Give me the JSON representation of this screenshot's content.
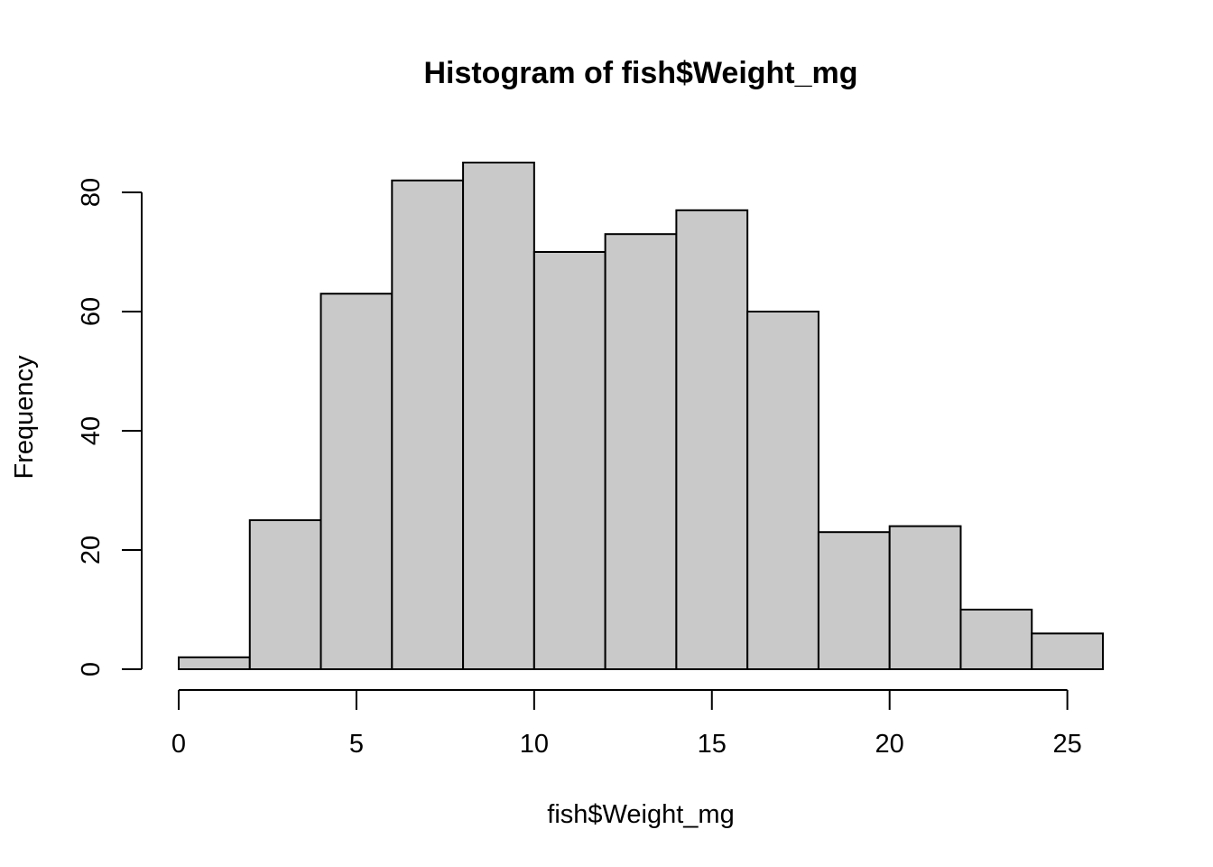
{
  "chart_data": {
    "type": "bar",
    "title": "Histogram of fish$Weight_mg",
    "xlabel": "fish$Weight_mg",
    "ylabel": "Frequency",
    "bin_edges": [
      0,
      2,
      4,
      6,
      8,
      10,
      12,
      14,
      16,
      18,
      20,
      22,
      24,
      26
    ],
    "values": [
      2,
      25,
      63,
      82,
      85,
      70,
      73,
      77,
      60,
      23,
      24,
      10,
      6
    ],
    "x_ticks": [
      0,
      5,
      10,
      15,
      20,
      25
    ],
    "y_ticks": [
      0,
      20,
      40,
      60,
      80
    ],
    "xlim": [
      0,
      26
    ],
    "ylim": [
      0,
      85
    ],
    "bar_color": "#c9c9c9",
    "grid": false
  }
}
